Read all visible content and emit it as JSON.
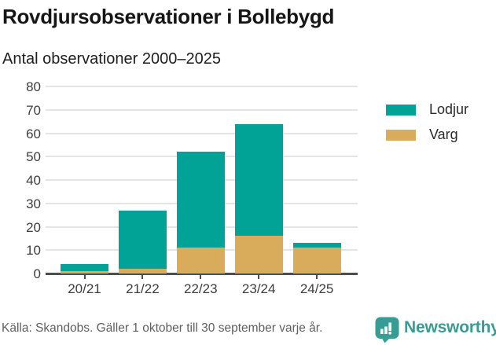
{
  "title": "Rovdjursobservationer i Bollebygd",
  "subtitle": "Antal observationer 2000–2025",
  "legend": {
    "items": [
      {
        "label": "Lodjur",
        "color_key": "lodjur"
      },
      {
        "label": "Varg",
        "color_key": "varg"
      }
    ]
  },
  "footer": {
    "source": "Källa: Skandobs. Gäller 1 oktober till 30 september varje år.",
    "brand": "Newsworthy"
  },
  "colors": {
    "lodjur": "#00a396",
    "varg": "#d9ac5c",
    "brand": "#379c94",
    "gridline": "#e4e4e4",
    "axis": "#4d4d4d",
    "tick_text": "#3d3d3d",
    "muted_text": "#5f5f5f"
  },
  "icons": {
    "brand_logo": "newsworthy-speech-bubble-bar-chart-icon"
  },
  "chart_data": {
    "type": "bar",
    "stacked": true,
    "title": "Rovdjursobservationer i Bollebygd",
    "subtitle": "Antal observationer 2000–2025",
    "categories": [
      "20/21",
      "21/22",
      "22/23",
      "23/24",
      "24/25"
    ],
    "series": [
      {
        "name": "Varg",
        "color_key": "varg",
        "values": [
          1,
          2,
          11,
          16,
          11
        ]
      },
      {
        "name": "Lodjur",
        "color_key": "lodjur",
        "values": [
          3,
          25,
          41,
          48,
          2
        ]
      }
    ],
    "totals": [
      4,
      27,
      52,
      64,
      13
    ],
    "xlabel": "",
    "ylabel": "",
    "ylim": [
      0,
      80
    ],
    "ytick_step": 10,
    "grid": true,
    "legend_position": "right",
    "legend_order": [
      "Lodjur",
      "Varg"
    ]
  }
}
